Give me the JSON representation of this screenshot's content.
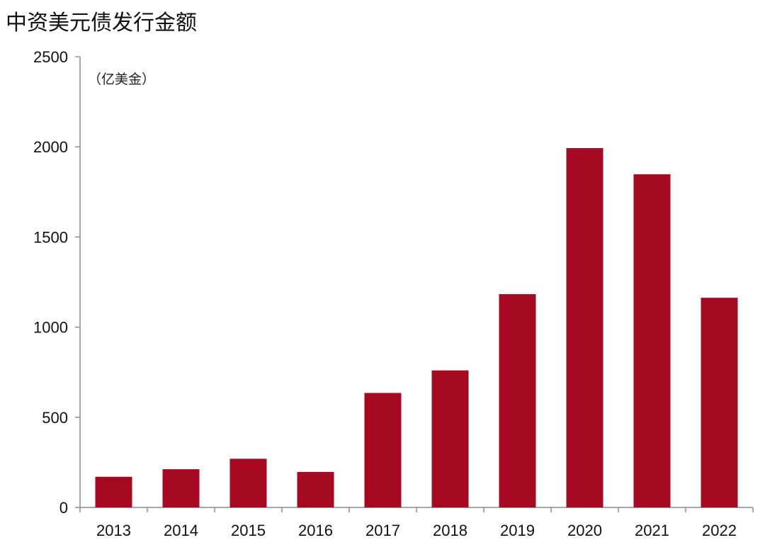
{
  "chart_data": {
    "type": "bar",
    "title": "中资美元债发行金额",
    "unit_label": "（亿美金）",
    "categories": [
      "2013",
      "2014",
      "2015",
      "2016",
      "2017",
      "2018",
      "2019",
      "2020",
      "2021",
      "2022"
    ],
    "values": [
      170,
      212,
      270,
      197,
      635,
      760,
      1183,
      1993,
      1848,
      1163
    ],
    "ylim": [
      0,
      2500
    ],
    "yticks": [
      0,
      500,
      1000,
      1500,
      2000,
      2500
    ],
    "xlabel": "",
    "ylabel": "",
    "grid": false,
    "legend": "none",
    "bar_color": "#a50a22",
    "axis_color": "#8c8c8c"
  }
}
